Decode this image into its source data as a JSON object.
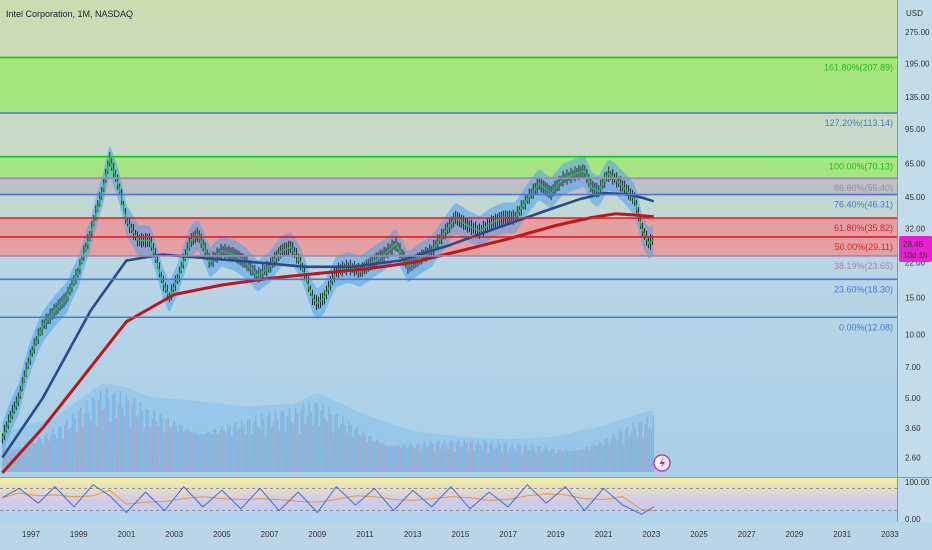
{
  "header": {
    "symbol_title": "Intel Corporation, 1M, NASDAQ"
  },
  "price_axis": {
    "currency": "USD",
    "ticks": [
      275.0,
      195.0,
      135.0,
      95.0,
      65.0,
      45.0,
      32.0,
      22.0,
      15.0,
      10.0,
      7.0,
      5.0,
      3.6,
      2.6
    ],
    "tick_labels": [
      "275.00",
      "195.00",
      "135.00",
      "95.00",
      "65.00",
      "45.00",
      "32.00",
      "22.00",
      "15.00",
      "10.00",
      "7.00",
      "5.00",
      "3.60",
      "2.60"
    ],
    "scale": "log",
    "range": [
      2.1,
      390
    ]
  },
  "time_axis": {
    "labels": [
      "1997",
      "1999",
      "2001",
      "2003",
      "2005",
      "2007",
      "2009",
      "2011",
      "2013",
      "2015",
      "2017",
      "2019",
      "2021",
      "2023",
      "2025",
      "2027",
      "2029",
      "2031",
      "2033"
    ],
    "range": [
      1995.7,
      2033.3
    ]
  },
  "current_price": {
    "value": "28.46",
    "countdown": "10d 1h",
    "color": "#e81fd1"
  },
  "colors": {
    "green_zone": "#9be86a",
    "red_zone": "#ee9294",
    "gray_zone": "#bdb8c2",
    "ma_red": "#c2141a",
    "ma_navy": "#2b4a8a",
    "band_fill": "#4fa3e8",
    "fib_green": "#18c21c",
    "fib_red": "#e01e26",
    "fib_blue": "#4a78d6",
    "fib_gray": "#9c8ab3"
  },
  "chart_data": [
    {
      "type": "line",
      "title": "Intel Corporation, 1M, NASDAQ",
      "scale": "log",
      "ylim": [
        2.1,
        390
      ],
      "fib_levels": [
        {
          "label": "161.80%(207.89)",
          "value": 207.89,
          "color": "green"
        },
        {
          "label": "127.20%(113.14)",
          "value": 113.14,
          "color": "blue"
        },
        {
          "label": "100.00%(70.13)",
          "value": 70.13,
          "color": "green"
        },
        {
          "label": "86.60%(55.40)",
          "value": 55.4,
          "color": "gray"
        },
        {
          "label": "76.40%(46.31)",
          "value": 46.31,
          "color": "blue"
        },
        {
          "label": "61.80%(35.82)",
          "value": 35.82,
          "color": "red"
        },
        {
          "label": "50.00%(29.11)",
          "value": 29.11,
          "color": "red"
        },
        {
          "label": "38.19%(23.65)",
          "value": 23.65,
          "color": "gray"
        },
        {
          "label": "23.60%(18.30)",
          "value": 18.3,
          "color": "blue"
        },
        {
          "label": "0.00%(12.08)",
          "value": 12.08,
          "color": "blue"
        }
      ],
      "series": [
        {
          "kind": "price",
          "x": [
            1995.8,
            1996.5,
            1997.0,
            1997.5,
            1998.0,
            1998.5,
            1999.0,
            1999.5,
            2000.0,
            2000.3,
            2000.7,
            2001.0,
            2001.5,
            2002.0,
            2002.5,
            2002.8,
            2003.2,
            2003.7,
            2004.0,
            2004.5,
            2005.0,
            2005.5,
            2006.0,
            2006.5,
            2007.0,
            2007.5,
            2007.9,
            2008.3,
            2008.8,
            2009.0,
            2009.3,
            2009.8,
            2010.3,
            2010.8,
            2011.3,
            2011.8,
            2012.3,
            2012.8,
            2013.3,
            2013.8,
            2014.3,
            2014.8,
            2015.3,
            2015.8,
            2016.3,
            2016.8,
            2017.3,
            2017.8,
            2018.3,
            2018.8,
            2019.3,
            2019.8,
            2020.2,
            2020.5,
            2020.8,
            2021.2,
            2021.5,
            2022.0,
            2022.3,
            2022.6,
            2022.9,
            2023.1
          ],
          "y": [
            3.2,
            5.0,
            8.0,
            11.0,
            13.0,
            15.0,
            20.0,
            30.0,
            48.0,
            68.0,
            50.0,
            35.0,
            28.0,
            28.0,
            18.0,
            15.0,
            19.0,
            28.0,
            30.0,
            22.0,
            25.0,
            24.0,
            22.0,
            19.0,
            21.0,
            25.0,
            26.0,
            22.0,
            15.0,
            14.0,
            15.0,
            20.0,
            21.0,
            20.0,
            22.0,
            24.0,
            27.0,
            21.0,
            23.0,
            25.0,
            30.0,
            36.0,
            33.0,
            31.0,
            34.0,
            36.0,
            36.0,
            44.0,
            52.0,
            47.0,
            55.0,
            58.0,
            60.0,
            50.0,
            48.0,
            58.0,
            55.0,
            48.0,
            44.0,
            32.0,
            27.0,
            28.46
          ]
        },
        {
          "kind": "ma_slow_red",
          "x": [
            1995.8,
            1997.5,
            1999.5,
            2001.0,
            2003.0,
            2005.0,
            2007.0,
            2009.0,
            2011.0,
            2013.0,
            2015.0,
            2017.0,
            2019.0,
            2020.5,
            2021.5,
            2022.3,
            2023.1
          ],
          "y": [
            2.2,
            3.6,
            7.0,
            11.5,
            15.5,
            17.2,
            18.5,
            19.5,
            20.5,
            22.0,
            25.0,
            28.5,
            33.0,
            36.0,
            37.5,
            37.0,
            36.3
          ]
        },
        {
          "kind": "ma_mid_navy",
          "x": [
            1995.8,
            1997.5,
            1999.5,
            2001.0,
            2002.5,
            2004.5,
            2006.5,
            2008.5,
            2010.5,
            2012.5,
            2014.5,
            2016.5,
            2018.5,
            2020.0,
            2021.0,
            2022.0,
            2022.7,
            2023.1
          ],
          "y": [
            2.6,
            5.0,
            13.0,
            22.5,
            24.0,
            23.0,
            22.0,
            21.0,
            21.0,
            22.5,
            26.5,
            32.0,
            38.5,
            44.0,
            47.0,
            46.5,
            44.5,
            43.0
          ]
        },
        {
          "kind": "volume",
          "x": [
            1996,
            1998,
            2000,
            2001,
            2002,
            2004,
            2006,
            2008,
            2009,
            2011,
            2013,
            2015,
            2017,
            2019,
            2021,
            2022,
            2023
          ],
          "y": [
            0.3,
            0.4,
            0.65,
            0.62,
            0.55,
            0.52,
            0.48,
            0.5,
            0.58,
            0.42,
            0.3,
            0.26,
            0.24,
            0.26,
            0.34,
            0.4,
            0.45
          ]
        }
      ]
    },
    {
      "type": "line",
      "title": "",
      "ylim": [
        0,
        100
      ],
      "ticks": [
        100,
        0
      ],
      "tick_labels": [
        "100.00",
        "0.00"
      ],
      "series": [
        {
          "kind": "stoch_k",
          "x": [
            1995.8,
            1996.5,
            1997.3,
            1998.0,
            1998.8,
            1999.6,
            2000.3,
            2001.0,
            2001.8,
            2002.6,
            2003.4,
            2004.2,
            2005.0,
            2005.8,
            2006.6,
            2007.4,
            2008.2,
            2009.0,
            2009.8,
            2010.6,
            2011.4,
            2012.2,
            2013.0,
            2013.8,
            2014.6,
            2015.4,
            2016.2,
            2017.0,
            2017.8,
            2018.6,
            2019.4,
            2020.2,
            2021.0,
            2021.8,
            2022.6,
            2023.1
          ],
          "y": [
            55,
            80,
            40,
            85,
            30,
            90,
            60,
            15,
            70,
            20,
            85,
            30,
            75,
            25,
            80,
            20,
            70,
            15,
            85,
            35,
            80,
            20,
            75,
            30,
            85,
            25,
            70,
            30,
            90,
            40,
            85,
            20,
            80,
            35,
            10,
            30
          ]
        }
      ]
    }
  ]
}
